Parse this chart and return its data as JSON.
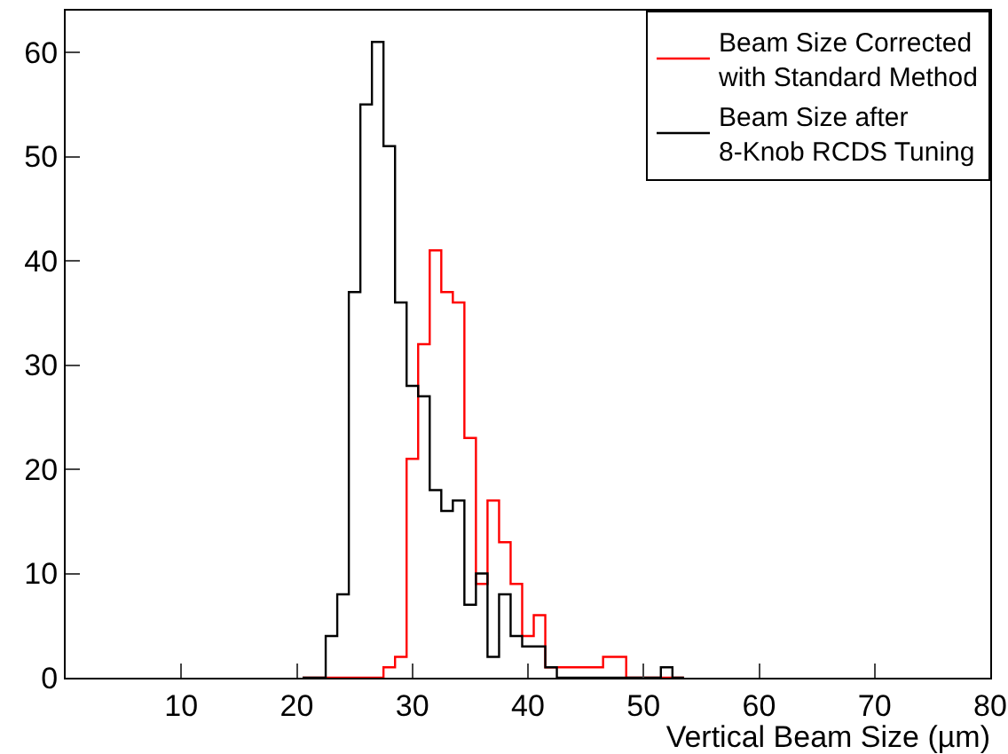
{
  "chart_data": {
    "type": "histogram",
    "xlabel": "Vertical Beam Size (µm)",
    "bins": [
      20.5,
      21.5,
      22.5,
      23.5,
      24.5,
      25.5,
      26.5,
      27.5,
      28.5,
      29.5,
      30.5,
      31.5,
      32.5,
      33.5,
      34.5,
      35.5,
      36.5,
      37.5,
      38.5,
      39.5,
      40.5,
      41.5,
      42.5,
      43.5,
      44.5,
      45.5,
      46.5,
      47.5,
      48.5,
      49.5,
      50.5,
      51.5,
      52.5,
      53.5
    ],
    "series": [
      {
        "name": "Beam Size Corrected\nwith Standard Method",
        "color": "#ff0000",
        "values": [
          0,
          0,
          0,
          0,
          0,
          0,
          0,
          1,
          2,
          21,
          32,
          41,
          37,
          36,
          23,
          9,
          17,
          13,
          9,
          4,
          6,
          1,
          1,
          1,
          1,
          1,
          2,
          2,
          0,
          0,
          0,
          0,
          0
        ]
      },
      {
        "name": "Beam Size after\n8-Knob RCDS Tuning",
        "color": "#000000",
        "values": [
          0,
          0,
          4,
          8,
          37,
          55,
          61,
          51,
          36,
          28,
          27,
          18,
          16,
          17,
          7,
          10,
          2,
          8,
          4,
          3,
          3,
          1,
          0,
          0,
          0,
          0,
          0,
          0,
          0,
          0,
          0,
          1,
          0
        ]
      }
    ],
    "xlim": [
      0,
      80
    ],
    "xticks": [
      10,
      20,
      30,
      40,
      50,
      60,
      70,
      80
    ],
    "ylim": [
      0,
      64
    ],
    "yticks": [
      0,
      10,
      20,
      30,
      40,
      50,
      60
    ],
    "grid": false,
    "legend": "top right"
  }
}
